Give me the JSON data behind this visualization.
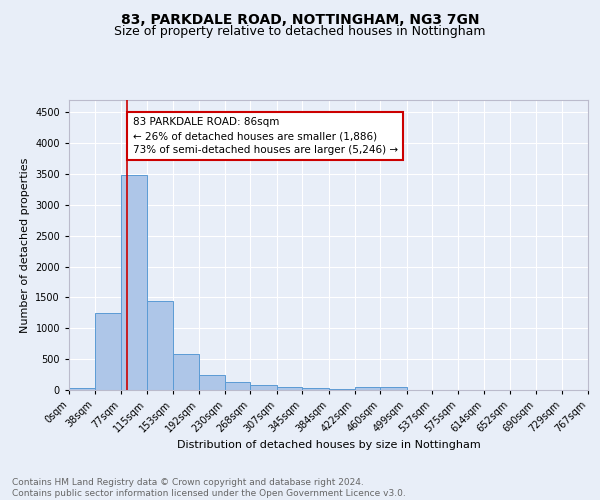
{
  "title": "83, PARKDALE ROAD, NOTTINGHAM, NG3 7GN",
  "subtitle": "Size of property relative to detached houses in Nottingham",
  "xlabel": "Distribution of detached houses by size in Nottingham",
  "ylabel": "Number of detached properties",
  "bin_labels": [
    "0sqm",
    "38sqm",
    "77sqm",
    "115sqm",
    "153sqm",
    "192sqm",
    "230sqm",
    "268sqm",
    "307sqm",
    "345sqm",
    "384sqm",
    "422sqm",
    "460sqm",
    "499sqm",
    "537sqm",
    "575sqm",
    "614sqm",
    "652sqm",
    "690sqm",
    "729sqm",
    "767sqm"
  ],
  "bin_edges": [
    0,
    38,
    77,
    115,
    153,
    192,
    230,
    268,
    307,
    345,
    384,
    422,
    460,
    499,
    537,
    575,
    614,
    652,
    690,
    729,
    767
  ],
  "bar_heights": [
    30,
    1250,
    3480,
    1450,
    580,
    250,
    130,
    80,
    50,
    30,
    15,
    50,
    50,
    0,
    0,
    0,
    0,
    0,
    0,
    0
  ],
  "bar_color": "#aec6e8",
  "bar_edgecolor": "#5b9bd5",
  "property_sqm": 86,
  "red_line_color": "#cc0000",
  "annotation_text_line1": "83 PARKDALE ROAD: 86sqm",
  "annotation_text_line2": "← 26% of detached houses are smaller (1,886)",
  "annotation_text_line3": "73% of semi-detached houses are larger (5,246) →",
  "annotation_box_edgecolor": "#cc0000",
  "annotation_box_facecolor": "#ffffff",
  "ylim": [
    0,
    4700
  ],
  "yticks": [
    0,
    500,
    1000,
    1500,
    2000,
    2500,
    3000,
    3500,
    4000,
    4500
  ],
  "footer_text": "Contains HM Land Registry data © Crown copyright and database right 2024.\nContains public sector information licensed under the Open Government Licence v3.0.",
  "background_color": "#e8eef8",
  "plot_background_color": "#e8eef8",
  "grid_color": "#ffffff",
  "title_fontsize": 10,
  "subtitle_fontsize": 9,
  "axis_label_fontsize": 8,
  "tick_fontsize": 7,
  "annotation_fontsize": 7.5,
  "footer_fontsize": 6.5
}
